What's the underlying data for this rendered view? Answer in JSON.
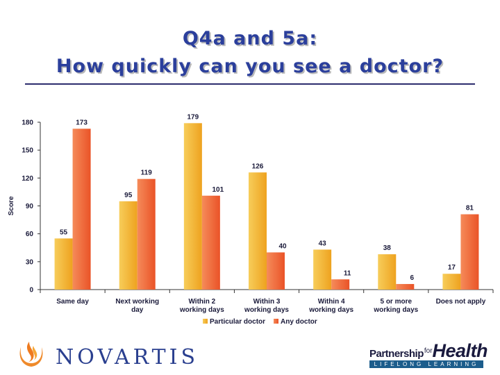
{
  "header": {
    "title_line1": "Q4a and 5a:",
    "title_line2": "How quickly can you see a doctor?"
  },
  "chart_data": {
    "type": "bar",
    "ylabel": "Score",
    "ylim": [
      0,
      180
    ],
    "yticks": [
      0,
      30,
      60,
      90,
      120,
      150,
      180
    ],
    "categories": [
      "Same day",
      "Next working day",
      "Within 2 working days",
      "Within 3 working days",
      "Within 4 working days",
      "5 or more working days",
      "Does not apply"
    ],
    "category_lines": [
      [
        "Same day"
      ],
      [
        "Next working",
        "day"
      ],
      [
        "Within 2",
        "working days"
      ],
      [
        "Within 3",
        "working days"
      ],
      [
        "Within 4",
        "working days"
      ],
      [
        "5 or more",
        "working days"
      ],
      [
        "Does not apply"
      ]
    ],
    "series": [
      {
        "name": "Particular doctor",
        "values": [
          55,
          95,
          179,
          126,
          43,
          38,
          17
        ],
        "color": "#f2b134"
      },
      {
        "name": "Any doctor",
        "values": [
          173,
          119,
          101,
          40,
          11,
          6,
          81
        ],
        "color": "#f0643c"
      }
    ],
    "legend_position": "bottom",
    "grid": false
  },
  "footer": {
    "novartis_logo": "NOVARTIS",
    "pfh_partnership": "Partnership",
    "pfh_for": "for",
    "pfh_health": "Health",
    "pfh_band": "LIFELONG LEARNING",
    "novartis_icon": "novartis-flame-icon"
  }
}
